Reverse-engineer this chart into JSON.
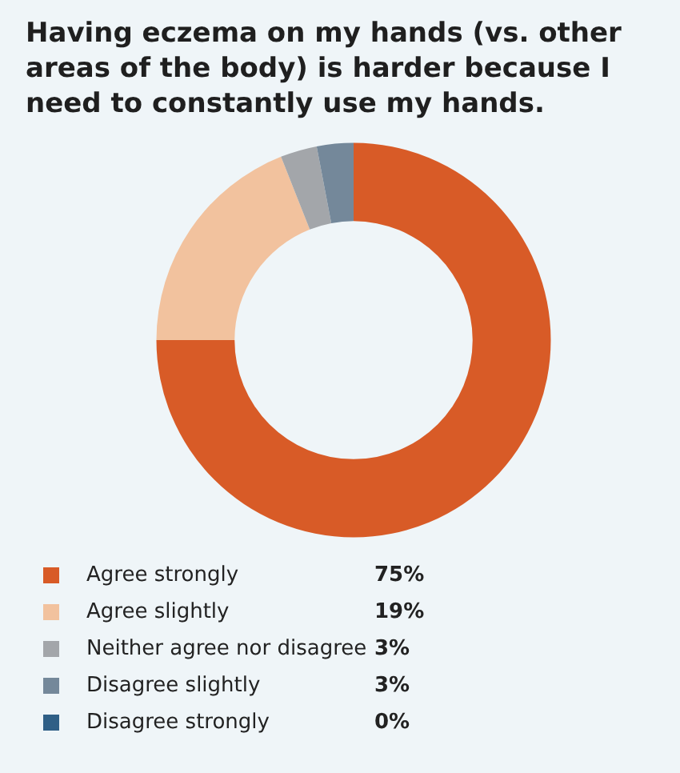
{
  "chart_data": {
    "type": "donut",
    "title": "Having eczema on my hands (vs. other areas of the body) is harder because I need to constantly use my hands.",
    "categories": [
      "Agree strongly",
      "Agree slightly",
      "Neither agree nor disagree",
      "Disagree slightly",
      "Disagree strongly"
    ],
    "values": [
      75,
      19,
      3,
      3,
      0
    ],
    "colors": [
      "#d85b27",
      "#f2c29e",
      "#a3a6aa",
      "#74889a",
      "#2f5f86"
    ],
    "value_labels": [
      "75%",
      "19%",
      "3%",
      "3%",
      "0%"
    ],
    "legend": "bottom left"
  }
}
